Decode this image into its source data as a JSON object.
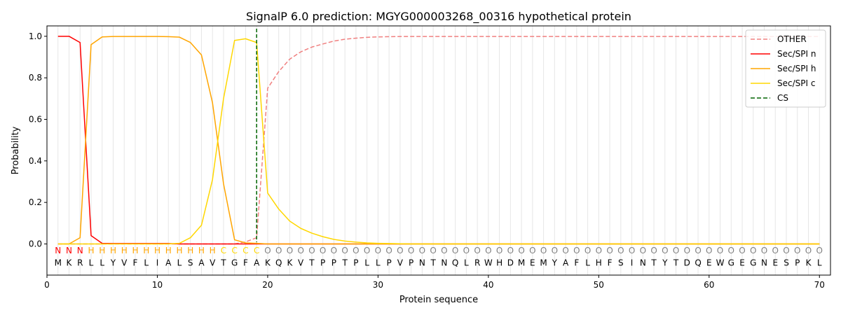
{
  "chart_data": {
    "type": "line",
    "title": "SignalP 6.0 prediction: MGYG000003268_00316 hypothetical protein",
    "xlabel": "Protein sequence",
    "ylabel": "Probability",
    "xlim": [
      0,
      71
    ],
    "ylim": [
      -0.15,
      1.05
    ],
    "xticks": [
      0,
      10,
      20,
      30,
      40,
      50,
      60,
      70
    ],
    "yticks": [
      0.0,
      0.2,
      0.4,
      0.6,
      0.8,
      1.0
    ],
    "grid": "vertical lines at each residue",
    "legend_position": "top-right",
    "sequence": "MKRLLYVFLIALSAVTGFAKQKVTPPTPLLPVPNTNQLRWHDMEMYAFLHFSINTYTDQEWGEGNESPKL",
    "labels": "NNNHHHHHHHHHHHHCCCCOOOOOOOOOOOOOOOOOOOOOOOOOOOOOOOOOOOOOOOOOOOOOOOOOOO",
    "label_colors": {
      "N": "#ff0000",
      "H": "#ffa500",
      "C": "#ffd700",
      "O": "#808080"
    },
    "cleavage_site": 19,
    "series": [
      {
        "name": "OTHER",
        "color": "#f08080",
        "dashed": true,
        "values": [
          0.0,
          0.0,
          0.0,
          0.0,
          0.0,
          0.0,
          0.0,
          0.0,
          0.0,
          0.0,
          0.0,
          0.0,
          0.0,
          0.0,
          0.0,
          0.0,
          0.0,
          0.01,
          0.03,
          0.75,
          0.83,
          0.89,
          0.925,
          0.948,
          0.963,
          0.977,
          0.986,
          0.991,
          0.995,
          0.997,
          0.998,
          0.999,
          0.999,
          0.999,
          0.999,
          0.999,
          0.999,
          0.999,
          0.999,
          0.999,
          0.999,
          0.999,
          0.999,
          0.999,
          0.999,
          0.999,
          0.999,
          0.999,
          0.999,
          0.999,
          0.999,
          0.999,
          0.999,
          0.999,
          0.999,
          0.999,
          0.999,
          0.999,
          0.999,
          0.999,
          0.999,
          0.999,
          0.999,
          0.999,
          0.999,
          0.999,
          0.999,
          0.999,
          0.999,
          0.999
        ]
      },
      {
        "name": "Sec/SPI n",
        "color": "#ff0000",
        "dashed": false,
        "values": [
          1.0,
          1.0,
          0.97,
          0.04,
          0.003,
          0.002,
          0.002,
          0.002,
          0.002,
          0.002,
          0.002,
          0.0,
          0.0,
          0.0,
          0.0,
          0.0,
          0.0,
          0.0,
          0.0,
          0.0,
          0.0,
          0.0,
          0.0,
          0.0,
          0.0,
          0.0,
          0.0,
          0.0,
          0.0,
          0.0,
          0.0,
          0.0,
          0.0,
          0.0,
          0.0,
          0.0,
          0.0,
          0.0,
          0.0,
          0.0,
          0.0,
          0.0,
          0.0,
          0.0,
          0.0,
          0.0,
          0.0,
          0.0,
          0.0,
          0.0,
          0.0,
          0.0,
          0.0,
          0.0,
          0.0,
          0.0,
          0.0,
          0.0,
          0.0,
          0.0,
          0.0,
          0.0,
          0.0,
          0.0,
          0.0,
          0.0,
          0.0,
          0.0,
          0.0,
          0.0
        ]
      },
      {
        "name": "Sec/SPI h",
        "color": "#ffa500",
        "dashed": false,
        "values": [
          0.0,
          0.0,
          0.03,
          0.96,
          0.997,
          0.999,
          0.999,
          0.999,
          0.999,
          0.999,
          0.998,
          0.996,
          0.97,
          0.91,
          0.68,
          0.29,
          0.02,
          0.005,
          0.003,
          0.0,
          0.0,
          0.0,
          0.0,
          0.0,
          0.0,
          0.0,
          0.0,
          0.0,
          0.0,
          0.0,
          0.0,
          0.0,
          0.0,
          0.0,
          0.0,
          0.0,
          0.0,
          0.0,
          0.0,
          0.0,
          0.0,
          0.0,
          0.0,
          0.0,
          0.0,
          0.0,
          0.0,
          0.0,
          0.0,
          0.0,
          0.0,
          0.0,
          0.0,
          0.0,
          0.0,
          0.0,
          0.0,
          0.0,
          0.0,
          0.0,
          0.0,
          0.0,
          0.0,
          0.0,
          0.0,
          0.0,
          0.0,
          0.0,
          0.0,
          0.0
        ]
      },
      {
        "name": "Sec/SPI c",
        "color": "#ffd700",
        "dashed": false,
        "values": [
          0.0,
          0.0,
          0.0,
          0.0,
          0.0,
          0.0,
          0.0,
          0.0,
          0.0,
          0.0,
          0.0,
          0.003,
          0.03,
          0.09,
          0.31,
          0.7,
          0.98,
          0.988,
          0.97,
          0.245,
          0.168,
          0.11,
          0.075,
          0.052,
          0.035,
          0.022,
          0.014,
          0.009,
          0.005,
          0.003,
          0.002,
          0.001,
          0.0,
          0.0,
          0.0,
          0.0,
          0.0,
          0.0,
          0.0,
          0.0,
          0.0,
          0.0,
          0.0,
          0.0,
          0.0,
          0.0,
          0.0,
          0.0,
          0.0,
          0.0,
          0.0,
          0.0,
          0.0,
          0.0,
          0.0,
          0.0,
          0.0,
          0.0,
          0.0,
          0.0,
          0.0,
          0.0,
          0.0,
          0.0,
          0.0,
          0.0,
          0.0,
          0.0,
          0.0,
          0.0
        ]
      }
    ],
    "legend": [
      {
        "label": "OTHER",
        "color": "#f08080",
        "dashed": true
      },
      {
        "label": "Sec/SPI n",
        "color": "#ff0000",
        "dashed": false
      },
      {
        "label": "Sec/SPI h",
        "color": "#ffa500",
        "dashed": false
      },
      {
        "label": "Sec/SPI c",
        "color": "#ffd700",
        "dashed": false
      },
      {
        "label": "CS",
        "color": "#006400",
        "dashed": true
      }
    ]
  }
}
